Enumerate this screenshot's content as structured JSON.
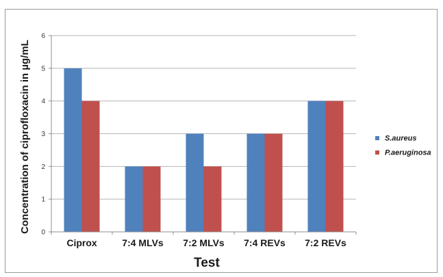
{
  "chart_data": {
    "type": "bar",
    "title": "",
    "xlabel": "Test",
    "ylabel": "Concentration of ciprofloxacin in µg/mL",
    "categories": [
      "Ciprox",
      "7:4 MLVs",
      "7:2 MLVs",
      "7:4 REVs",
      "7:2 REVs"
    ],
    "series": [
      {
        "name": "S.aureus",
        "color": "#4f81bd",
        "values": [
          5,
          2,
          3,
          3,
          4
        ]
      },
      {
        "name": "P.aeruginosa",
        "color": "#c0504d",
        "values": [
          4,
          2,
          2,
          3,
          4
        ]
      }
    ],
    "ylim": [
      0,
      6
    ],
    "yticks": [
      "0",
      "1",
      "2",
      "3",
      "4",
      "5",
      "6"
    ],
    "grid": true,
    "legend_position": "right"
  }
}
